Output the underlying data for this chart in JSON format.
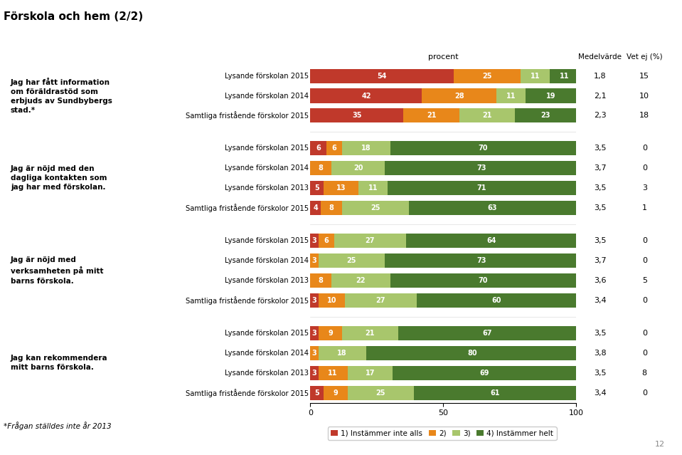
{
  "title": "Förskola och hem (2/2)",
  "groups": [
    {
      "question": "Jag har fått information\nom föräldrastöd som\nerbjuds av Sundbybergs\nstad.*",
      "rows": [
        {
          "label": "Lysande förskolan 2015",
          "v1": 54,
          "v2": 25,
          "v3": 11,
          "v4": 11,
          "medel": "1,8",
          "vetej": 15
        },
        {
          "label": "Lysande förskolan 2014",
          "v1": 42,
          "v2": 28,
          "v3": 11,
          "v4": 19,
          "medel": "2,1",
          "vetej": 10
        },
        {
          "label": "Samtliga fristående förskolor 2015",
          "v1": 35,
          "v2": 21,
          "v3": 21,
          "v4": 23,
          "medel": "2,3",
          "vetej": 18
        }
      ]
    },
    {
      "question": "Jag är nöjd med den\ndagliga kontakten som\njag har med förskolan.",
      "rows": [
        {
          "label": "Lysande förskolan 2015",
          "v1": 6,
          "v2": 6,
          "v3": 18,
          "v4": 70,
          "medel": "3,5",
          "vetej": 0
        },
        {
          "label": "Lysande förskolan 2014",
          "v1": 0,
          "v2": 8,
          "v3": 20,
          "v4": 73,
          "medel": "3,7",
          "vetej": 0
        },
        {
          "label": "Lysande förskolan 2013",
          "v1": 5,
          "v2": 13,
          "v3": 11,
          "v4": 71,
          "medel": "3,5",
          "vetej": 3
        },
        {
          "label": "Samtliga fristående förskolor 2015",
          "v1": 4,
          "v2": 8,
          "v3": 25,
          "v4": 63,
          "medel": "3,5",
          "vetej": 1
        }
      ]
    },
    {
      "question": "Jag är nöjd med\nverksamheten på mitt\nbarns förskola.",
      "rows": [
        {
          "label": "Lysande förskolan 2015",
          "v1": 3,
          "v2": 6,
          "v3": 27,
          "v4": 64,
          "medel": "3,5",
          "vetej": 0
        },
        {
          "label": "Lysande förskolan 2014",
          "v1": 0,
          "v2": 3,
          "v3": 25,
          "v4": 73,
          "medel": "3,7",
          "vetej": 0
        },
        {
          "label": "Lysande förskolan 2013",
          "v1": 0,
          "v2": 8,
          "v3": 22,
          "v4": 70,
          "medel": "3,6",
          "vetej": 5
        },
        {
          "label": "Samtliga fristående förskolor 2015",
          "v1": 3,
          "v2": 10,
          "v3": 27,
          "v4": 60,
          "medel": "3,4",
          "vetej": 0
        }
      ]
    },
    {
      "question": "Jag kan rekommendera\nmitt barns förskola.",
      "rows": [
        {
          "label": "Lysande förskolan 2015",
          "v1": 3,
          "v2": 9,
          "v3": 21,
          "v4": 67,
          "medel": "3,5",
          "vetej": 0
        },
        {
          "label": "Lysande förskolan 2014",
          "v1": 0,
          "v2": 3,
          "v3": 18,
          "v4": 80,
          "medel": "3,8",
          "vetej": 0
        },
        {
          "label": "Lysande förskolan 2013",
          "v1": 3,
          "v2": 11,
          "v3": 17,
          "v4": 69,
          "medel": "3,5",
          "vetej": 8
        },
        {
          "label": "Samtliga fristående förskolor 2015",
          "v1": 5,
          "v2": 9,
          "v3": 25,
          "v4": 61,
          "medel": "3,4",
          "vetej": 0
        }
      ]
    }
  ],
  "colors": {
    "v1": "#c0392b",
    "v2": "#e8871a",
    "v3": "#a8c66c",
    "v4": "#4a7a2e"
  },
  "legend_labels": [
    "1) Instämmer inte alls",
    "2)",
    "3)",
    "4) Instämmer helt"
  ],
  "axis_label": "procent",
  "medelvarde_label": "Medelvärde",
  "vetej_label": "Vet ej (%)",
  "footnote": "*Frågan ställdes inte år 2013",
  "page_number": "12"
}
